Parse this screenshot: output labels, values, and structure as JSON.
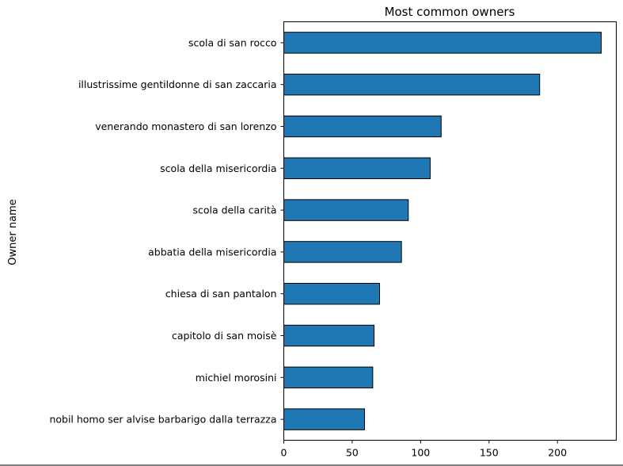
{
  "chart_data": {
    "type": "bar",
    "orientation": "horizontal",
    "title": "Most common owners",
    "xlabel": "",
    "ylabel": "Owner name",
    "categories": [
      "scola di san rocco",
      "illustrissime gentildonne di san zaccaria",
      "venerando monastero di san lorenzo",
      "scola della misericordia",
      "scola della carità",
      "abbatia della misericordia",
      "chiesa di san pantalon",
      "capitolo di san moisè",
      "michiel morosini",
      "nobil homo ser alvise barbarigo dalla terrazza"
    ],
    "values": [
      232,
      187,
      115,
      107,
      91,
      86,
      70,
      66,
      65,
      59
    ],
    "xlim": [
      0,
      243
    ],
    "xticks": [
      0,
      50,
      100,
      150,
      200
    ],
    "grid": false,
    "bar_color": "#1f77b4",
    "edge_color": "#000000"
  }
}
